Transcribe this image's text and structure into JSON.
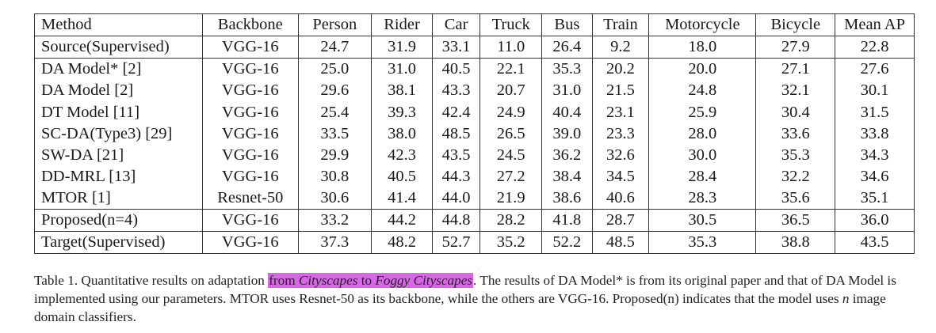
{
  "table": {
    "headers": [
      "Method",
      "Backbone",
      "Person",
      "Rider",
      "Car",
      "Truck",
      "Bus",
      "Train",
      "Motorcycle",
      "Bicycle",
      "Mean AP"
    ],
    "rows": [
      {
        "cells": [
          "Source(Supervised)",
          "VGG-16",
          "24.7",
          "31.9",
          "33.1",
          "11.0",
          "26.4",
          "9.2",
          "18.0",
          "27.9",
          "22.8"
        ],
        "bold": []
      },
      {
        "cells": [
          "DA Model* [2]",
          "VGG-16",
          "25.0",
          "31.0",
          "40.5",
          "22.1",
          "35.3",
          "20.2",
          "20.0",
          "27.1",
          "27.6"
        ],
        "bold": []
      },
      {
        "cells": [
          "DA Model [2]",
          "VGG-16",
          "29.6",
          "38.1",
          "43.3",
          "20.7",
          "31.0",
          "21.5",
          "24.8",
          "32.1",
          "30.1"
        ],
        "bold": []
      },
      {
        "cells": [
          "DT Model [11]",
          "VGG-16",
          "25.4",
          "39.3",
          "42.4",
          "24.9",
          "40.4",
          "23.1",
          "25.9",
          "30.4",
          "31.5"
        ],
        "bold": []
      },
      {
        "cells": [
          "SC-DA(Type3) [29]",
          "VGG-16",
          "33.5",
          "38.0",
          "48.5",
          "26.5",
          "39.0",
          "23.3",
          "28.0",
          "33.6",
          "33.8"
        ],
        "bold": [
          2,
          4
        ]
      },
      {
        "cells": [
          "SW-DA [21]",
          "VGG-16",
          "29.9",
          "42.3",
          "43.5",
          "24.5",
          "36.2",
          "32.6",
          "30.0",
          "35.3",
          "34.3"
        ],
        "bold": []
      },
      {
        "cells": [
          "DD-MRL [13]",
          "VGG-16",
          "30.8",
          "40.5",
          "44.3",
          "27.2",
          "38.4",
          "34.5",
          "28.4",
          "32.2",
          "34.6"
        ],
        "bold": []
      },
      {
        "cells": [
          "MTOR [1]",
          "Resnet-50",
          "30.6",
          "41.4",
          "44.0",
          "21.9",
          "38.6",
          "40.6",
          "28.3",
          "35.6",
          "35.1"
        ],
        "bold": [
          7
        ]
      },
      {
        "cells": [
          "Proposed(n=4)",
          "VGG-16",
          "33.2",
          "44.2",
          "44.8",
          "28.2",
          "41.8",
          "28.7",
          "30.5",
          "36.5",
          "36.0"
        ],
        "bold": [
          0,
          2,
          3,
          5,
          6,
          8,
          9,
          10
        ]
      },
      {
        "cells": [
          "Target(Supervised)",
          "VGG-16",
          "37.3",
          "48.2",
          "52.7",
          "35.2",
          "52.2",
          "48.5",
          "35.3",
          "38.8",
          "43.5"
        ],
        "bold": []
      }
    ]
  },
  "caption": {
    "label": "Table 1. Quantitative results on adaptation ",
    "hl_from": "from ",
    "hl_src": "Cityscapes",
    "hl_to": " to ",
    "hl_tgt": "Foggy Cityscapes",
    "rest1": ". The results of DA Model* is from its original paper and that of DA Model is implemented using our parameters. MTOR uses Resnet-50 as its backbone, while the others are VGG-16. Proposed(n) indicates that the model uses ",
    "var_n": "n",
    "rest2": " image domain classifiers."
  }
}
